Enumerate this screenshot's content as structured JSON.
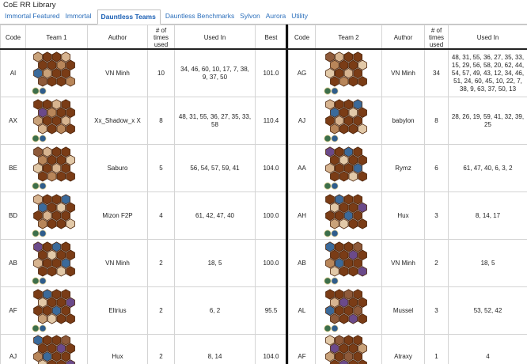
{
  "app_title": "CoE RR Library",
  "tabs": [
    "Immortal Featured",
    "Immortal",
    "Dauntless Teams",
    "Dauntless Benchmarks",
    "Sylvon",
    "Aurora",
    "Utility"
  ],
  "active_tab_index": 2,
  "left_table": {
    "headers": {
      "code": "Code",
      "team": "Team 1",
      "author": "Author",
      "times": "# of times used",
      "used_in": "Used In",
      "best": "Best"
    },
    "rows": [
      {
        "code": "AI",
        "author": "VN Minh",
        "times": "10",
        "used_in": "34, 46, 60, 10, 17, 7, 38, 9, 37, 50",
        "best": "101.0"
      },
      {
        "code": "AX",
        "author": "Xx_Shadow_x X",
        "times": "8",
        "used_in": "48, 31, 55, 36, 27, 35, 33, 58",
        "best": "110.4"
      },
      {
        "code": "BE",
        "author": "Saburo",
        "times": "5",
        "used_in": "56, 54, 57, 59, 41",
        "best": "104.0"
      },
      {
        "code": "BD",
        "author": "Mizon F2P",
        "times": "4",
        "used_in": "61, 42, 47, 40",
        "best": "100.0"
      },
      {
        "code": "AB",
        "author": "VN Minh",
        "times": "2",
        "used_in": "18, 5",
        "best": "100.0"
      },
      {
        "code": "AF",
        "author": "Eltrius",
        "times": "2",
        "used_in": "6, 2",
        "best": "95.5"
      },
      {
        "code": "AJ",
        "author": "Hux",
        "times": "2",
        "used_in": "8, 14",
        "best": "104.0"
      }
    ]
  },
  "right_table": {
    "headers": {
      "code": "Code",
      "team": "Team 2",
      "author": "Author",
      "times": "# of times used",
      "used_in": "Used In"
    },
    "rows": [
      {
        "code": "AG",
        "author": "VN Minh",
        "times": "34",
        "used_in": "48, 31, 55, 36, 27, 35, 33, 15, 29, 56, 58, 20, 62, 44, 54, 57, 49, 43, 12, 34, 46, 51, 24, 60, 45, 10, 22, 7, 38, 9, 63, 37, 50, 13"
      },
      {
        "code": "AJ",
        "author": "babylon",
        "times": "8",
        "used_in": "28, 26, 19, 59, 41, 32, 39, 25"
      },
      {
        "code": "AA",
        "author": "Rymz",
        "times": "6",
        "used_in": "61, 47, 40, 6, 3, 2"
      },
      {
        "code": "AH",
        "author": "Hux",
        "times": "3",
        "used_in": "8, 14, 17"
      },
      {
        "code": "AB",
        "author": "VN Minh",
        "times": "2",
        "used_in": "18, 5"
      },
      {
        "code": "AL",
        "author": "Mussel",
        "times": "3",
        "used_in": "53, 52, 42"
      },
      {
        "code": "AF",
        "author": "Atraxy",
        "times": "1",
        "used_in": "4"
      }
    ]
  },
  "colors": {
    "hex_fill": "#7a3c16",
    "hex_stroke": "#4a2208",
    "link": "#2a6ebb",
    "divider": "#111111"
  }
}
